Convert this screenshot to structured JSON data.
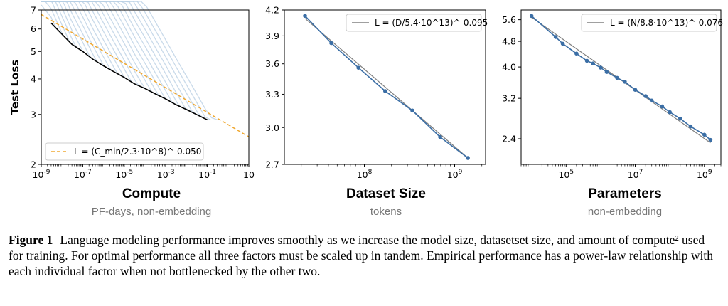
{
  "chart_data": [
    {
      "type": "line",
      "title": "Compute",
      "subtitle": "PF-days, non-embedding",
      "ylabel": "Test Loss",
      "xscale": "log",
      "yscale": "log",
      "xlim": [
        1e-09,
        10
      ],
      "ylim": [
        2,
        7
      ],
      "xticks": [
        "10-9",
        "10-7",
        "10-5",
        "10-3",
        "10-1",
        "10"
      ],
      "yticks": [
        "2",
        "3",
        "4",
        "5",
        "6",
        "7"
      ],
      "legend": {
        "position": "bottom-left",
        "text": "L = (C_min/2.3·10^8)^-0.050"
      },
      "frontier": {
        "x": [
          3e-09,
          1e-08,
          3e-08,
          1e-07,
          3e-07,
          1e-06,
          3e-06,
          1e-05,
          3e-05,
          0.0001,
          0.0003,
          0.001,
          0.003,
          0.01,
          0.03,
          0.1
        ],
        "y": [
          6.3,
          5.75,
          5.3,
          5.0,
          4.7,
          4.45,
          4.25,
          4.05,
          3.85,
          3.7,
          3.55,
          3.4,
          3.25,
          3.12,
          3.0,
          2.87
        ]
      },
      "fit": {
        "x": [
          1e-09,
          10
        ],
        "y": [
          6.75,
          2.5
        ]
      },
      "colors": {
        "runs": "#b7cde3",
        "frontier": "#000000",
        "fit": "#f0a830"
      }
    },
    {
      "type": "line",
      "title": "Dataset Size",
      "subtitle": "tokens",
      "xscale": "log",
      "yscale": "log",
      "xlim": [
        13000000.0,
        2200000000.0
      ],
      "ylim": [
        2.7,
        4.2
      ],
      "xticks": [
        "108",
        "109"
      ],
      "yticks": [
        "2.7",
        "3.0",
        "3.3",
        "3.6",
        "3.9",
        "4.2"
      ],
      "legend": {
        "position": "top-right",
        "text": "L = (D/5.4·10^13)^-0.095"
      },
      "series": [
        {
          "x": [
            22000000.0,
            43000000.0,
            86000000.0,
            170000000.0,
            340000000.0,
            690000000.0,
            1400000000.0
          ],
          "y": [
            4.13,
            3.82,
            3.56,
            3.33,
            3.15,
            2.92,
            2.75
          ]
        }
      ],
      "fit": {
        "x": [
          22000000.0,
          1400000000.0
        ],
        "y": [
          4.1,
          2.75
        ]
      },
      "colors": {
        "data": "#3b6ea5",
        "fit": "#808080"
      }
    },
    {
      "type": "line",
      "title": "Parameters",
      "subtitle": "non-embedding",
      "xscale": "log",
      "yscale": "log",
      "xlim": [
        5000.0,
        3000000000.0
      ],
      "ylim": [
        2.0,
        6.0
      ],
      "xticks": [
        "105",
        "107",
        "109"
      ],
      "yticks": [
        "2.4",
        "3.2",
        "4.0",
        "4.8",
        "5.6"
      ],
      "legend": {
        "position": "top-right",
        "text": "L = (N/8.8·10^13)^-0.076"
      },
      "series": [
        {
          "x": [
            10000.0,
            50000.0,
            80000.0,
            200000.0,
            400000.0,
            600000.0,
            1000000.0,
            1500000.0,
            3000000.0,
            5000000.0,
            10000000.0,
            20000000.0,
            30000000.0,
            60000000.0,
            100000000.0,
            200000000.0,
            400000000.0,
            1000000000.0,
            1500000000.0
          ],
          "y": [
            5.75,
            4.95,
            4.72,
            4.4,
            4.18,
            4.1,
            3.98,
            3.86,
            3.7,
            3.6,
            3.4,
            3.25,
            3.15,
            3.02,
            2.9,
            2.77,
            2.62,
            2.47,
            2.38
          ]
        }
      ],
      "fit": {
        "x": [
          10000.0,
          1500000000.0
        ],
        "y": [
          5.7,
          2.33
        ]
      },
      "colors": {
        "data": "#3b6ea5",
        "fit": "#808080"
      }
    }
  ],
  "caption": {
    "label": "Figure 1",
    "text": "Language modeling performance improves smoothly as we increase the model size, datasetset size, and amount of compute² used for training. For optimal performance all three factors must be scaled up in tandem. Empirical performance has a power-law relationship with each individual factor when not bottlenecked by the other two."
  }
}
